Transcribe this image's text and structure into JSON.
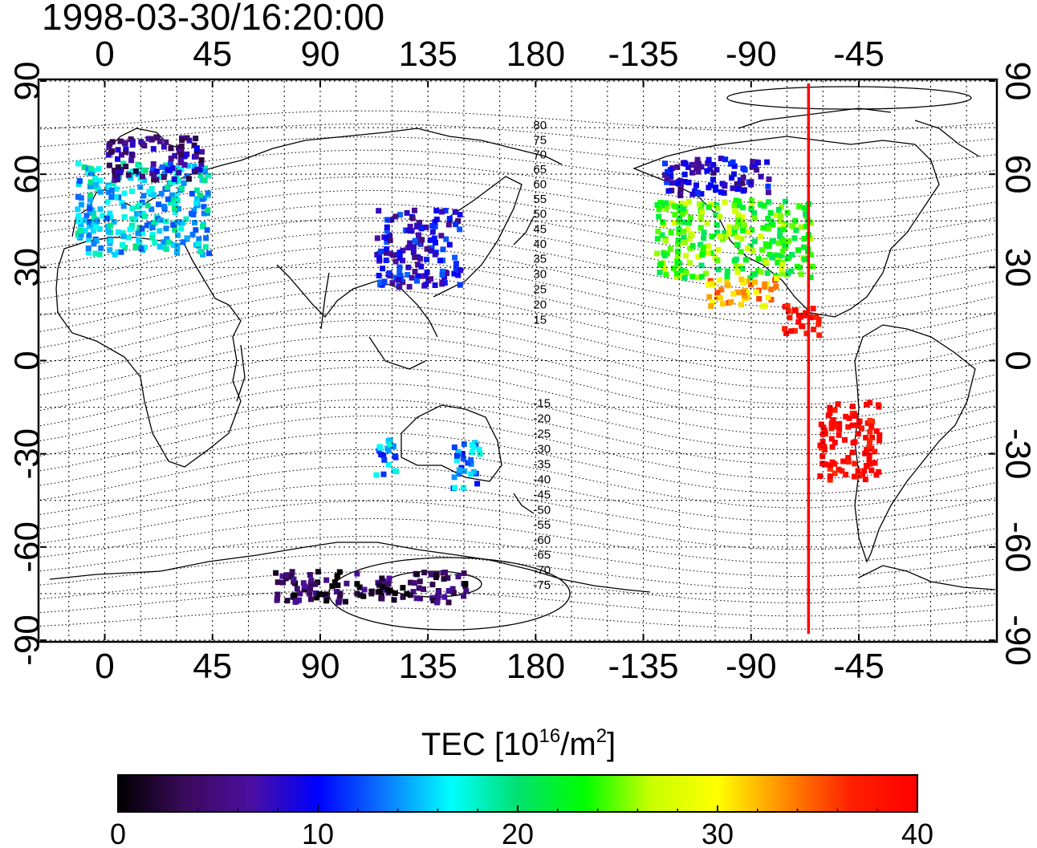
{
  "title": "1998-03-30/16:20:00",
  "map": {
    "lon_ticks": [
      "0",
      "45",
      "90",
      "135",
      "180",
      "-135",
      "-90",
      "-45"
    ],
    "lon_values": [
      0,
      45,
      90,
      135,
      180,
      225,
      270,
      315
    ],
    "lat_ticks": [
      "90",
      "60",
      "30",
      "0",
      "-30",
      "-60",
      "-90"
    ],
    "lat_values": [
      90,
      60,
      30,
      0,
      -30,
      -60,
      -90
    ],
    "lon_range": [
      -27,
      372
    ],
    "lat_range": [
      -90,
      90
    ],
    "magnetic_lat_labels": [
      "80",
      "75",
      "70",
      "65",
      "60",
      "55",
      "50",
      "45",
      "40",
      "35",
      "30",
      "25",
      "20",
      "15",
      "-15",
      "-20",
      "-25",
      "-30",
      "-35",
      "-40",
      "-45",
      "-50",
      "-55",
      "-60",
      "-65",
      "-70",
      "-75"
    ],
    "red_meridian_lon": -66,
    "grid": "dotted"
  },
  "colorbar": {
    "label_main": "TEC  [10",
    "label_exp1": "16",
    "label_mid": "/m",
    "label_exp2": "2",
    "label_end": "]",
    "ticks": [
      "0",
      "10",
      "20",
      "30",
      "40"
    ],
    "tick_values": [
      0,
      10,
      20,
      30,
      40
    ],
    "range": [
      0,
      40
    ],
    "colors": [
      "#000000",
      "#3a0a5a",
      "#4b0fa0",
      "#0000ff",
      "#0a78ff",
      "#00ffff",
      "#00e070",
      "#00ff00",
      "#c8ff00",
      "#ffff00",
      "#ff8c00",
      "#ff2000",
      "#ff0000"
    ]
  },
  "tec_regions": [
    {
      "name": "europe",
      "lon": 15,
      "lat": 50,
      "w": 55,
      "h": 30,
      "tec": 16
    },
    {
      "name": "scandinavia",
      "lon": 20,
      "lat": 66,
      "w": 40,
      "h": 14,
      "tec": 6
    },
    {
      "name": "east-asia",
      "lon": 130,
      "lat": 37,
      "w": 35,
      "h": 25,
      "tec": 9
    },
    {
      "name": "north-america",
      "lon": 262,
      "lat": 40,
      "w": 65,
      "h": 25,
      "tec": 24
    },
    {
      "name": "canada",
      "lon": 255,
      "lat": 60,
      "w": 45,
      "h": 12,
      "tec": 8
    },
    {
      "name": "gulf",
      "lon": 265,
      "lat": 23,
      "w": 30,
      "h": 10,
      "tec": 32
    },
    {
      "name": "caribbean",
      "lon": 290,
      "lat": 14,
      "w": 15,
      "h": 10,
      "tec": 40
    },
    {
      "name": "australia-east",
      "lon": 150,
      "lat": -33,
      "w": 12,
      "h": 15,
      "tec": 14
    },
    {
      "name": "australia-west",
      "lon": 117,
      "lat": -30,
      "w": 10,
      "h": 12,
      "tec": 14
    },
    {
      "name": "south-america",
      "lon": 310,
      "lat": -25,
      "w": 25,
      "h": 25,
      "tec": 40
    },
    {
      "name": "antarctica",
      "lon": 110,
      "lat": -72,
      "w": 80,
      "h": 10,
      "tec": 3
    }
  ]
}
